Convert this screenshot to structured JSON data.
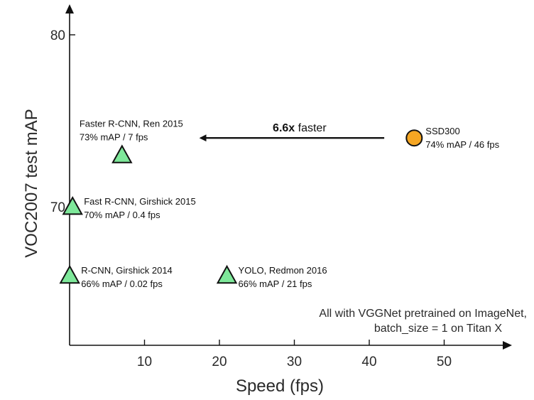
{
  "chart_data": {
    "type": "scatter",
    "xlabel": "Speed (fps)",
    "ylabel": "VOC2007 test mAP",
    "x_ticks": [
      10,
      20,
      30,
      40,
      50
    ],
    "y_ticks": [
      70,
      80
    ],
    "xlim": [
      0,
      58
    ],
    "ylim": [
      63,
      82
    ],
    "points": [
      {
        "x": 0.02,
        "y": 66,
        "marker": "triangle",
        "color": "#7ee89a",
        "line1": "R-CNN, Girshick 2014",
        "line2": "66% mAP / 0.02 fps"
      },
      {
        "x": 0.4,
        "y": 70,
        "marker": "triangle",
        "color": "#7ee89a",
        "line1": "Fast R-CNN, Girshick 2015",
        "line2": "70% mAP / 0.4 fps"
      },
      {
        "x": 7,
        "y": 73,
        "marker": "triangle",
        "color": "#7ee89a",
        "line1": "Faster R-CNN, Ren 2015",
        "line2": "73% mAP / 7 fps"
      },
      {
        "x": 21,
        "y": 66,
        "marker": "triangle",
        "color": "#7ee89a",
        "line1": "YOLO, Redmon 2016",
        "line2": "66% mAP / 21 fps"
      },
      {
        "x": 46,
        "y": 74,
        "marker": "circle",
        "color": "#f5a623",
        "line1": "SSD300",
        "line2": "74% mAP / 46 fps"
      }
    ],
    "annotation": {
      "bold": "6.6x",
      "text": " faster",
      "from_x": 42,
      "to_x": 17.5,
      "y": 74
    },
    "note_line1": "All with VGGNet pretrained on ImageNet,",
    "note_line2": "batch_size = 1 on Titan X"
  }
}
